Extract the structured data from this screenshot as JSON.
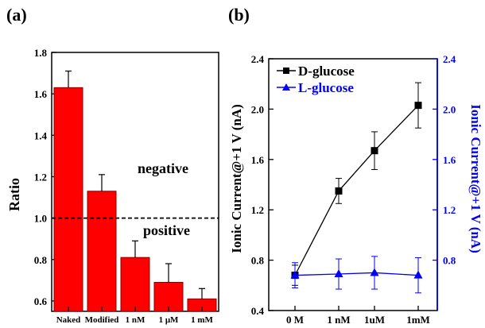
{
  "chart_data": [
    {
      "panel_label": "(a)",
      "type": "bar",
      "categories": [
        "Naked",
        "Modified",
        "1 nM",
        "1 μM",
        "1 mM"
      ],
      "values": [
        1.63,
        1.13,
        0.81,
        0.69,
        0.61
      ],
      "errors": [
        0.08,
        0.08,
        0.08,
        0.09,
        0.05
      ],
      "ylabel": "Ratio",
      "ylim": [
        0.55,
        1.8
      ],
      "yticks": [
        0.6,
        0.8,
        1.0,
        1.2,
        1.4,
        1.6,
        1.8
      ],
      "ytick_labels": [
        "0.6",
        "0.8",
        "1.0",
        "1.2",
        "1.4",
        "1.6",
        "1.8"
      ],
      "reference_line": 1.0,
      "annotations": [
        "negative",
        "positive"
      ],
      "bar_color": "#ff0000"
    },
    {
      "panel_label": "(b)",
      "type": "line",
      "categories": [
        "0 M",
        "1 nM",
        "1uM",
        "1mM"
      ],
      "ylabel_left": "Ionic Current@+1 V (nA)",
      "ylabel_right": "Ionic Current@+1 V (nA)",
      "ylim": [
        0.4,
        2.4
      ],
      "yticks": [
        0.4,
        0.8,
        1.2,
        1.6,
        2.0,
        2.4
      ],
      "ytick_labels": [
        "0.4",
        "0.8",
        "1.2",
        "1.6",
        "2.0",
        "2.4"
      ],
      "right_ylim": [
        0.4,
        2.4
      ],
      "right_yticks": [
        0.8,
        1.2,
        1.6,
        2.0,
        2.4
      ],
      "right_ytick_labels": [
        "0.8",
        "1.2",
        "1.6",
        "2.0",
        "2.4"
      ],
      "legend_position": "top-left",
      "series": [
        {
          "name": "D-glucose",
          "marker": "square",
          "color": "#000000",
          "values": [
            0.68,
            1.35,
            1.67,
            2.03
          ],
          "errors": [
            0.08,
            0.1,
            0.15,
            0.18
          ]
        },
        {
          "name": "L-glucose",
          "marker": "triangle",
          "color": "#0000ff",
          "values": [
            0.68,
            0.69,
            0.7,
            0.68
          ],
          "errors": [
            0.1,
            0.12,
            0.13,
            0.14
          ]
        }
      ]
    }
  ]
}
